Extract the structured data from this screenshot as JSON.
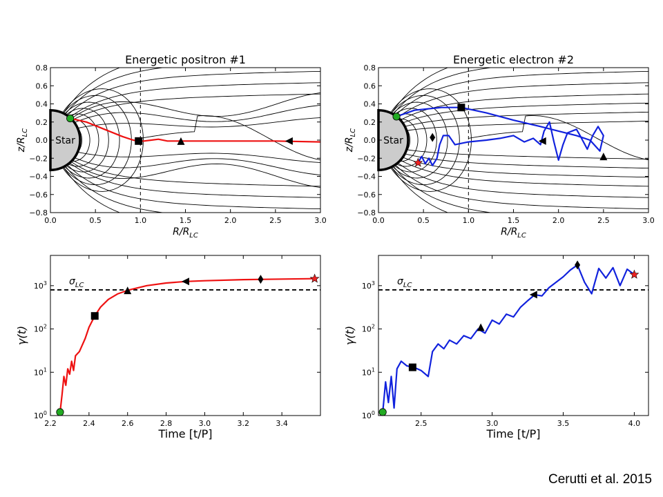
{
  "credit": "Cerutti et al. 2015",
  "colors": {
    "positron": "#ee1111",
    "electron": "#1122dd",
    "start_marker": "#22aa22",
    "end_marker": "#ee2222",
    "field_lines": "#000000",
    "star_fill": "#cccccc"
  },
  "chart_data": [
    {
      "id": "traj-positron",
      "type": "line",
      "title": "Energetic positron #1",
      "xlabel": "R/R_LC",
      "ylabel": "z/R_LC",
      "xlim": [
        0.0,
        3.0
      ],
      "ylim": [
        -0.8,
        0.8
      ],
      "xticks": [
        "0.0",
        "0.5",
        "1.0",
        "1.5",
        "2.0",
        "2.5",
        "3.0"
      ],
      "yticks": [
        "−0.8",
        "−0.6",
        "−0.4",
        "−0.2",
        "0.0",
        "0.2",
        "0.4",
        "0.6",
        "0.8"
      ],
      "star_label": "Star",
      "star_radius": 0.33,
      "light_cylinder_x": 1.0,
      "series": [
        {
          "color": "#ee1111",
          "points": [
            [
              0.22,
              0.24
            ],
            [
              0.4,
              0.2
            ],
            [
              0.6,
              0.12
            ],
            [
              0.8,
              0.04
            ],
            [
              0.92,
              0.0
            ],
            [
              0.98,
              -0.01
            ],
            [
              1.04,
              -0.01
            ],
            [
              1.12,
              0.0
            ],
            [
              1.2,
              0.01
            ],
            [
              1.3,
              -0.01
            ],
            [
              1.5,
              -0.01
            ],
            [
              2.0,
              -0.01
            ],
            [
              2.5,
              -0.01
            ],
            [
              3.0,
              -0.02
            ]
          ]
        }
      ],
      "markers": [
        {
          "shape": "circle",
          "x": 0.22,
          "y": 0.24
        },
        {
          "shape": "square",
          "x": 0.98,
          "y": -0.01
        },
        {
          "shape": "triangle",
          "x": 1.45,
          "y": -0.01
        },
        {
          "shape": "triangle-left",
          "x": 2.65,
          "y": -0.01
        }
      ]
    },
    {
      "id": "traj-electron",
      "type": "line",
      "title": "Energetic electron #2",
      "xlabel": "R/R_LC",
      "ylabel": "z/R_LC",
      "xlim": [
        0.0,
        3.0
      ],
      "ylim": [
        -0.8,
        0.8
      ],
      "xticks": [
        "0.0",
        "0.5",
        "1.0",
        "1.5",
        "2.0",
        "2.5",
        "3.0"
      ],
      "yticks": [
        "−0.8",
        "−0.6",
        "−0.4",
        "−0.2",
        "0.0",
        "0.2",
        "0.4",
        "0.6",
        "0.8"
      ],
      "star_label": "Star",
      "star_radius": 0.33,
      "light_cylinder_x": 1.0,
      "series": [
        {
          "color": "#1122dd",
          "points": [
            [
              0.2,
              0.26
            ],
            [
              0.4,
              0.33
            ],
            [
              0.7,
              0.36
            ],
            [
              0.92,
              0.36
            ],
            [
              1.2,
              0.3
            ],
            [
              1.5,
              0.22
            ],
            [
              1.8,
              0.15
            ],
            [
              2.0,
              0.1
            ],
            [
              2.2,
              0.05
            ],
            [
              2.35,
              0.0
            ],
            [
              2.46,
              -0.12
            ],
            [
              2.5,
              0.05
            ],
            [
              2.44,
              0.15
            ],
            [
              2.38,
              0.05
            ],
            [
              2.32,
              -0.1
            ],
            [
              2.24,
              0.05
            ],
            [
              2.2,
              0.12
            ],
            [
              2.1,
              0.08
            ],
            [
              2.05,
              -0.05
            ],
            [
              2.0,
              -0.22
            ],
            [
              1.95,
              -0.02
            ],
            [
              1.9,
              0.2
            ],
            [
              1.84,
              0.1
            ],
            [
              1.8,
              -0.05
            ],
            [
              1.72,
              0.02
            ],
            [
              1.62,
              -0.02
            ],
            [
              1.5,
              0.05
            ],
            [
              1.35,
              0.02
            ],
            [
              1.2,
              0.0
            ],
            [
              1.0,
              -0.02
            ],
            [
              0.85,
              -0.05
            ],
            [
              0.78,
              0.05
            ],
            [
              0.72,
              0.05
            ],
            [
              0.68,
              -0.05
            ],
            [
              0.65,
              -0.2
            ],
            [
              0.6,
              -0.28
            ],
            [
              0.56,
              -0.2
            ],
            [
              0.52,
              -0.26
            ],
            [
              0.48,
              -0.18
            ],
            [
              0.44,
              -0.25
            ]
          ]
        }
      ],
      "markers": [
        {
          "shape": "circle",
          "x": 0.2,
          "y": 0.26
        },
        {
          "shape": "square",
          "x": 0.92,
          "y": 0.36
        },
        {
          "shape": "triangle-left",
          "x": 1.82,
          "y": -0.01
        },
        {
          "shape": "diamond",
          "x": 0.6,
          "y": 0.03
        },
        {
          "shape": "triangle",
          "x": 2.5,
          "y": -0.18
        },
        {
          "shape": "star",
          "x": 0.44,
          "y": -0.25
        }
      ]
    },
    {
      "id": "gamma-positron",
      "type": "line",
      "xlabel": "Time [t/P]",
      "ylabel": "γ(t)",
      "xlim": [
        2.2,
        3.6
      ],
      "ylim": [
        1,
        5000
      ],
      "yscale": "log",
      "xticks": [
        "2.2",
        "2.4",
        "2.6",
        "2.8",
        "3.0",
        "3.2",
        "3.4"
      ],
      "yticks": [
        "10^0",
        "10^1",
        "10^2",
        "10^3"
      ],
      "sigma_label": "σLC",
      "sigma_value": 800,
      "series": [
        {
          "color": "#ee1111",
          "points": [
            [
              2.25,
              1.2
            ],
            [
              2.26,
              3
            ],
            [
              2.27,
              8
            ],
            [
              2.28,
              5
            ],
            [
              2.29,
              12
            ],
            [
              2.3,
              9
            ],
            [
              2.31,
              18
            ],
            [
              2.32,
              11
            ],
            [
              2.33,
              24
            ],
            [
              2.35,
              30
            ],
            [
              2.38,
              60
            ],
            [
              2.4,
              110
            ],
            [
              2.43,
              200
            ],
            [
              2.46,
              320
            ],
            [
              2.5,
              480
            ],
            [
              2.55,
              650
            ],
            [
              2.6,
              780
            ],
            [
              2.7,
              1000
            ],
            [
              2.8,
              1150
            ],
            [
              2.9,
              1250
            ],
            [
              3.0,
              1300
            ],
            [
              3.2,
              1380
            ],
            [
              3.4,
              1420
            ],
            [
              3.57,
              1450
            ]
          ]
        }
      ],
      "markers": [
        {
          "shape": "circle",
          "x": 2.25,
          "y": 1.2
        },
        {
          "shape": "square",
          "x": 2.43,
          "y": 200
        },
        {
          "shape": "triangle",
          "x": 2.6,
          "y": 780
        },
        {
          "shape": "triangle-left",
          "x": 2.9,
          "y": 1250
        },
        {
          "shape": "diamond",
          "x": 3.29,
          "y": 1400
        },
        {
          "shape": "star",
          "x": 3.57,
          "y": 1450
        }
      ]
    },
    {
      "id": "gamma-electron",
      "type": "line",
      "xlabel": "Time [t/P]",
      "ylabel": "γ(t)",
      "xlim": [
        2.2,
        4.1
      ],
      "ylim": [
        1,
        5000
      ],
      "yscale": "log",
      "xticks": [
        "2.5",
        "3.0",
        "3.5",
        "4.0"
      ],
      "yticks": [
        "10^0",
        "10^1",
        "10^2",
        "10^3"
      ],
      "sigma_label": "σLC",
      "sigma_value": 800,
      "series": [
        {
          "color": "#1122dd",
          "points": [
            [
              2.23,
              1.2
            ],
            [
              2.25,
              6
            ],
            [
              2.27,
              2
            ],
            [
              2.29,
              8
            ],
            [
              2.31,
              1.5
            ],
            [
              2.33,
              12
            ],
            [
              2.36,
              18
            ],
            [
              2.4,
              14
            ],
            [
              2.45,
              13
            ],
            [
              2.5,
              11
            ],
            [
              2.55,
              8
            ],
            [
              2.58,
              30
            ],
            [
              2.62,
              45
            ],
            [
              2.66,
              35
            ],
            [
              2.7,
              55
            ],
            [
              2.75,
              45
            ],
            [
              2.8,
              70
            ],
            [
              2.85,
              60
            ],
            [
              2.9,
              100
            ],
            [
              2.95,
              80
            ],
            [
              3.0,
              160
            ],
            [
              3.05,
              130
            ],
            [
              3.1,
              220
            ],
            [
              3.15,
              190
            ],
            [
              3.2,
              320
            ],
            [
              3.25,
              450
            ],
            [
              3.3,
              620
            ],
            [
              3.35,
              580
            ],
            [
              3.4,
              900
            ],
            [
              3.45,
              1200
            ],
            [
              3.5,
              1600
            ],
            [
              3.55,
              2300
            ],
            [
              3.6,
              3000
            ],
            [
              3.65,
              1200
            ],
            [
              3.7,
              650
            ],
            [
              3.75,
              2500
            ],
            [
              3.8,
              1500
            ],
            [
              3.85,
              2600
            ],
            [
              3.9,
              1000
            ],
            [
              3.95,
              2400
            ],
            [
              4.0,
              1800
            ]
          ]
        }
      ],
      "markers": [
        {
          "shape": "circle",
          "x": 2.23,
          "y": 1.2
        },
        {
          "shape": "square",
          "x": 2.44,
          "y": 13
        },
        {
          "shape": "triangle",
          "x": 2.92,
          "y": 110
        },
        {
          "shape": "triangle-left",
          "x": 3.29,
          "y": 620
        },
        {
          "shape": "diamond",
          "x": 3.6,
          "y": 3000
        },
        {
          "shape": "star",
          "x": 4.0,
          "y": 1800
        }
      ]
    }
  ]
}
